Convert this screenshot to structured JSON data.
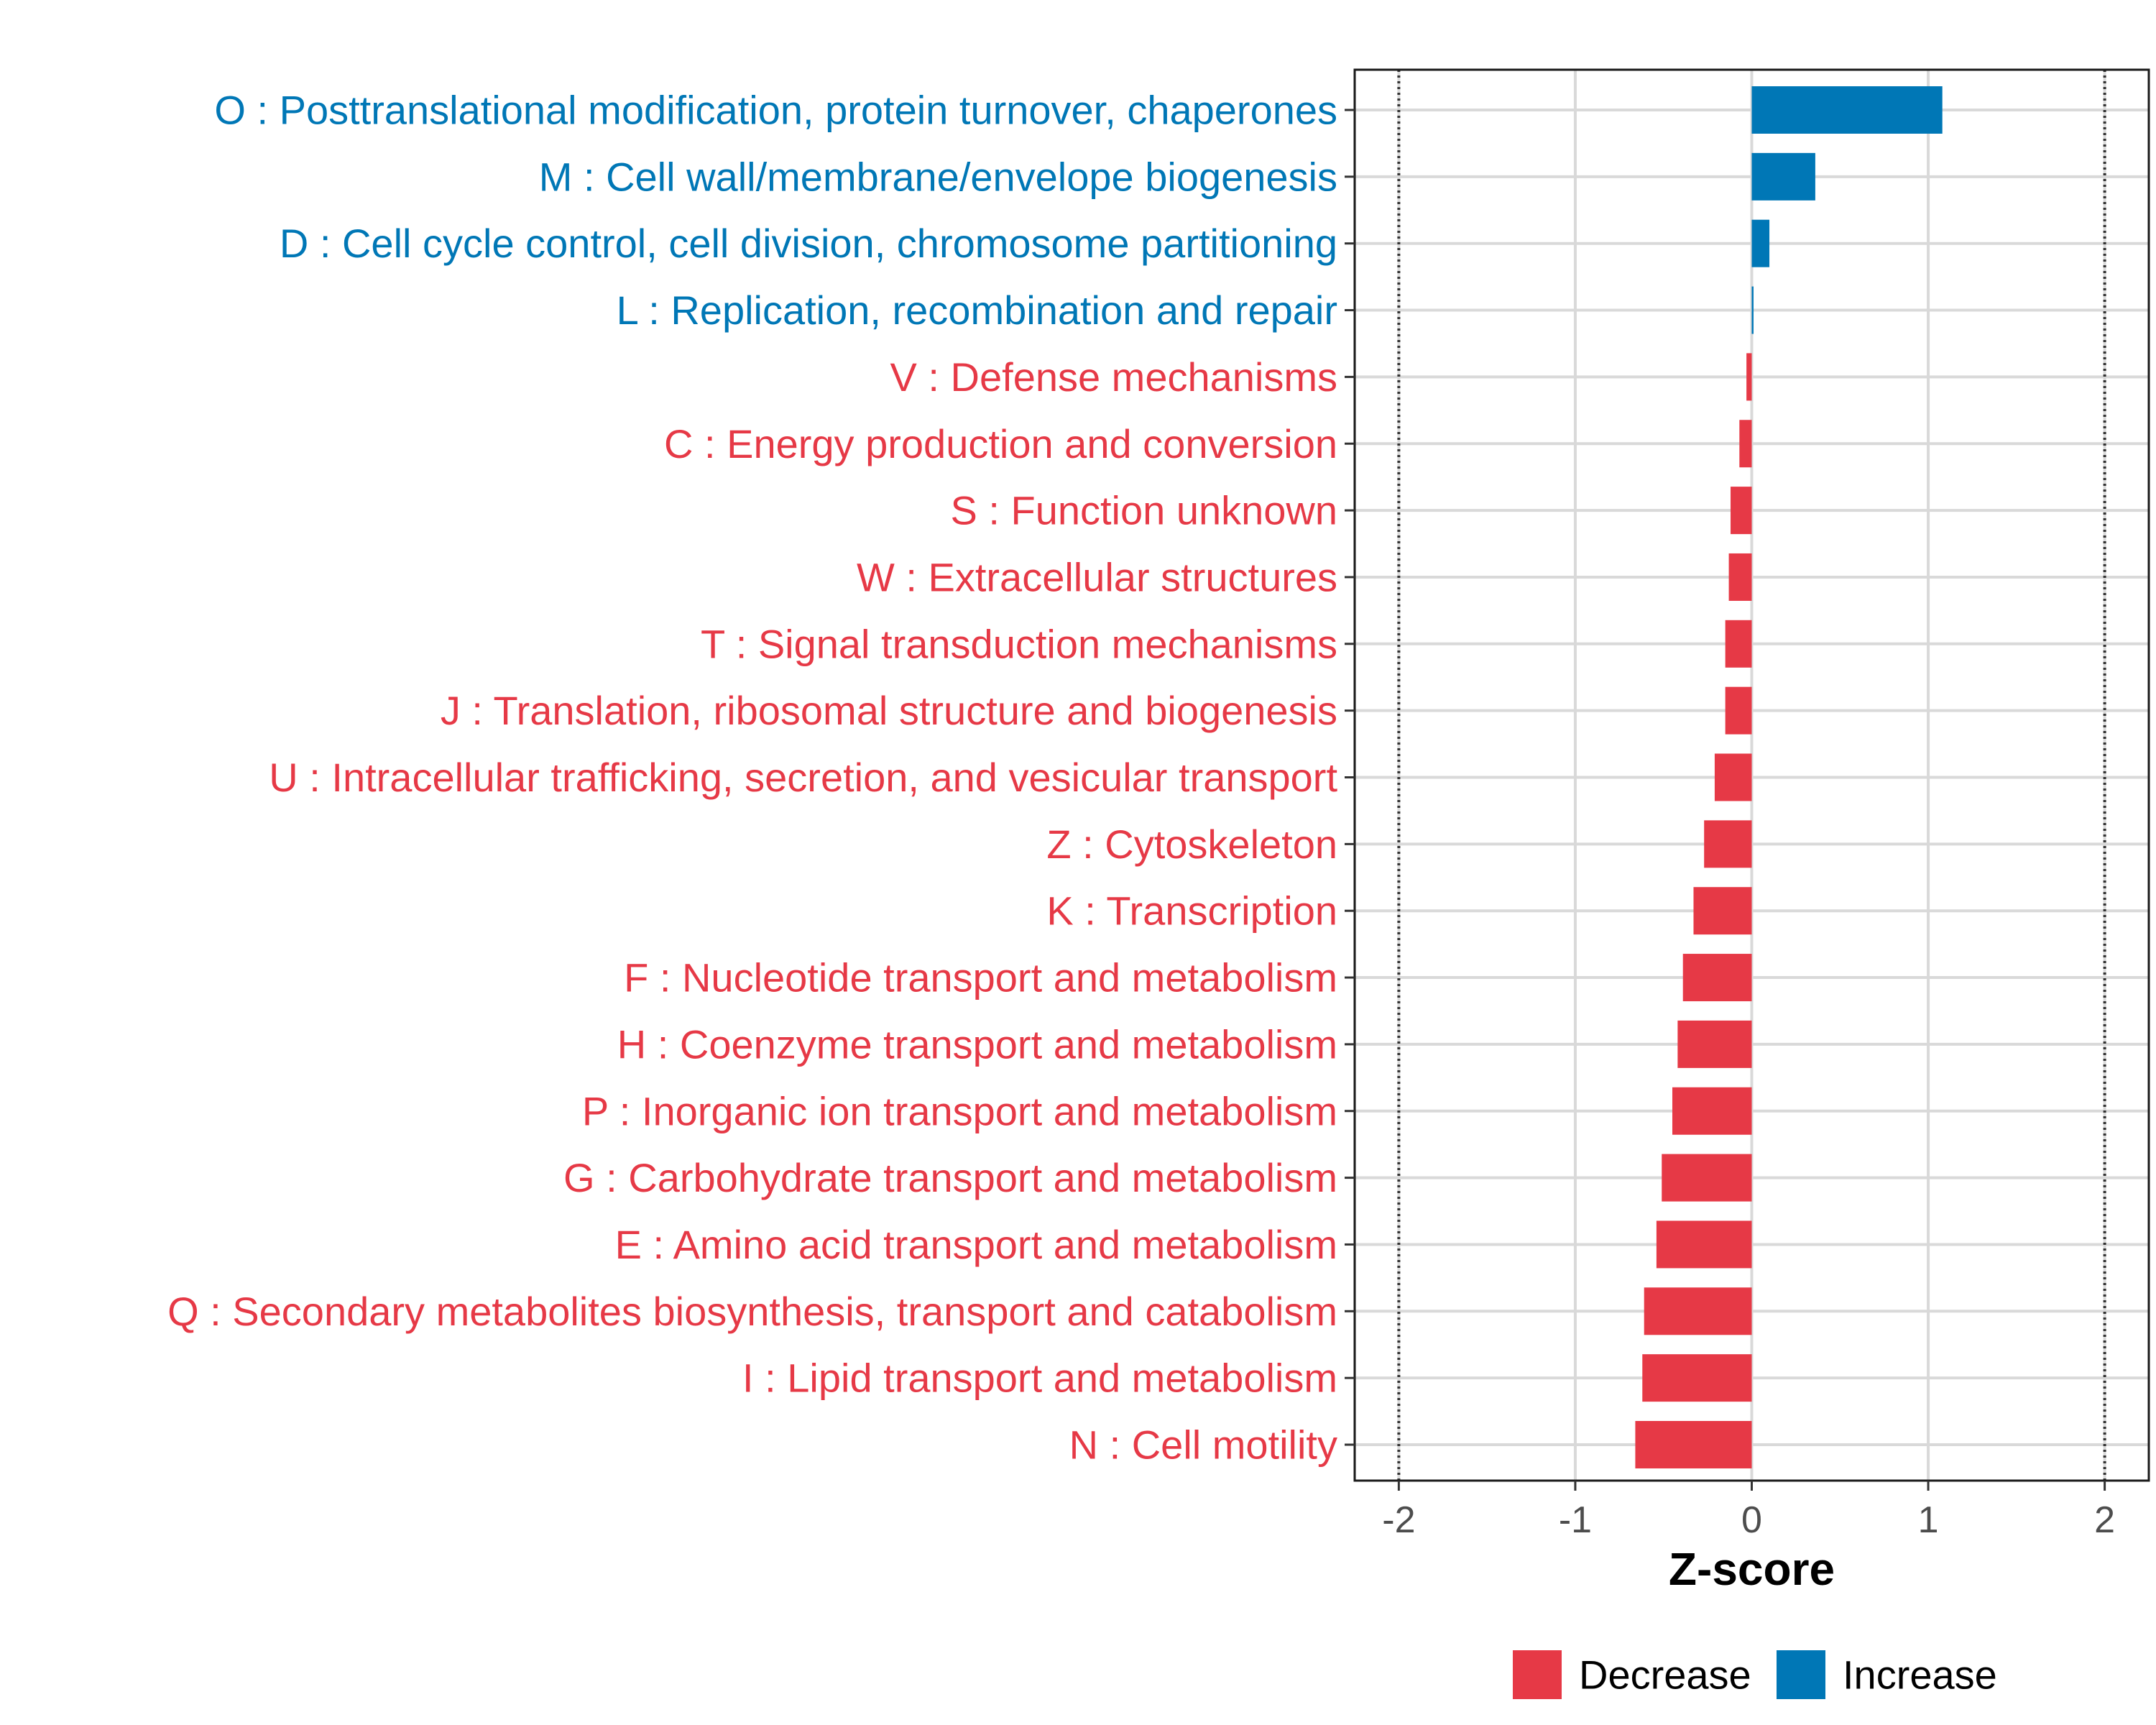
{
  "chart_data": {
    "type": "bar",
    "orientation": "horizontal",
    "title": "",
    "xlabel": "Z-score",
    "ylabel": "",
    "xlim": [
      -2.25,
      2.25
    ],
    "xticks": [
      -2,
      -1,
      0,
      1,
      2
    ],
    "xtick_labels": [
      "-2",
      "-1",
      "0",
      "1",
      "2"
    ],
    "reference_lines": [
      -2,
      2
    ],
    "grid": true,
    "legend_position": "bottom",
    "legend": [
      {
        "key": "decrease",
        "label": "Decrease",
        "color": "#E63946"
      },
      {
        "key": "increase",
        "label": "Increase",
        "color": "#0077B6"
      }
    ],
    "categories": [
      "O : Posttranslational modification, protein turnover, chaperones",
      "M : Cell wall/membrane/envelope biogenesis",
      "D : Cell cycle control, cell division, chromosome partitioning",
      "L : Replication, recombination and repair",
      "V : Defense mechanisms",
      "C : Energy production and conversion",
      "S : Function unknown",
      "W : Extracellular structures",
      "T : Signal transduction mechanisms",
      "J : Translation, ribosomal structure and biogenesis",
      "U : Intracellular trafficking, secretion, and vesicular transport",
      "Z : Cytoskeleton",
      "K : Transcription",
      "F : Nucleotide transport and metabolism",
      "H : Coenzyme transport and metabolism",
      "P : Inorganic ion transport and metabolism",
      "G : Carbohydrate transport and metabolism",
      "E : Amino acid transport and metabolism",
      "Q : Secondary metabolites biosynthesis, transport and catabolism",
      "I : Lipid transport and metabolism",
      "N : Cell motility"
    ],
    "values": [
      1.08,
      0.36,
      0.1,
      0.01,
      -0.03,
      -0.07,
      -0.12,
      -0.13,
      -0.15,
      -0.15,
      -0.21,
      -0.27,
      -0.33,
      -0.39,
      -0.42,
      -0.45,
      -0.51,
      -0.54,
      -0.61,
      -0.62,
      -0.66
    ],
    "groups": [
      "increase",
      "increase",
      "increase",
      "increase",
      "decrease",
      "decrease",
      "decrease",
      "decrease",
      "decrease",
      "decrease",
      "decrease",
      "decrease",
      "decrease",
      "decrease",
      "decrease",
      "decrease",
      "decrease",
      "decrease",
      "decrease",
      "decrease",
      "decrease"
    ]
  }
}
